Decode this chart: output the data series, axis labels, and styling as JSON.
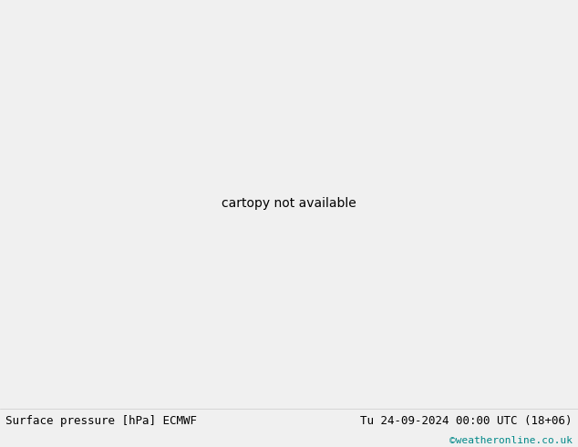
{
  "title_left": "Surface pressure [hPa] ECMWF",
  "title_right": "Tu 24-09-2024 00:00 UTC (18+06)",
  "credit": "©weatheronline.co.uk",
  "ocean_color": "#c8d8e8",
  "land_color": "#c8e8b0",
  "border_color": "#888888",
  "bottom_bar_color": "#f0f0f0",
  "black_color": "#000000",
  "red_color": "#cc0000",
  "blue_color": "#3366cc",
  "cyan_color": "#008888",
  "figsize": [
    6.34,
    4.9
  ],
  "dpi": 100,
  "extent": [
    -25,
    55,
    -40,
    42
  ],
  "isobar_lw": 1.0,
  "label_fontsize": 6.5
}
